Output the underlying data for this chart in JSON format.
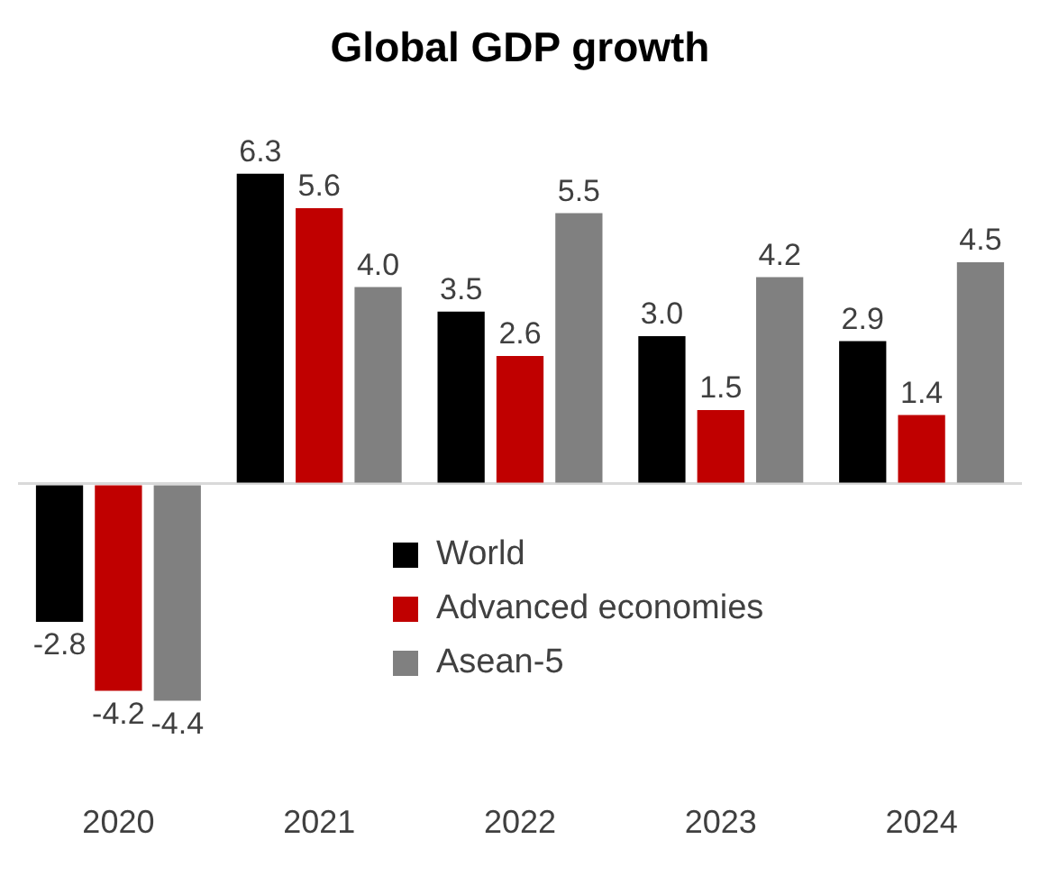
{
  "chart_data": {
    "type": "bar",
    "title": "Global GDP growth",
    "categories": [
      "2020",
      "2021",
      "2022",
      "2023",
      "2024"
    ],
    "series": [
      {
        "name": "World",
        "color": "#000000",
        "values": [
          -2.8,
          6.3,
          3.5,
          3.0,
          2.9
        ],
        "value_labels": [
          "-2.8",
          "6.3",
          "3.5",
          "3.0",
          "2.9"
        ]
      },
      {
        "name": "Advanced economies",
        "color": "#c00000",
        "values": [
          -4.2,
          5.6,
          2.6,
          1.5,
          1.4
        ],
        "value_labels": [
          "-4.2",
          "5.6",
          "2.6",
          "1.5",
          "1.4"
        ]
      },
      {
        "name": "Asean-5",
        "color": "#808080",
        "values": [
          -4.4,
          4.0,
          5.5,
          4.2,
          4.5
        ],
        "value_labels": [
          "-4.4",
          "4.0",
          "5.5",
          "4.2",
          "4.5"
        ]
      }
    ],
    "legend": "right"
  }
}
